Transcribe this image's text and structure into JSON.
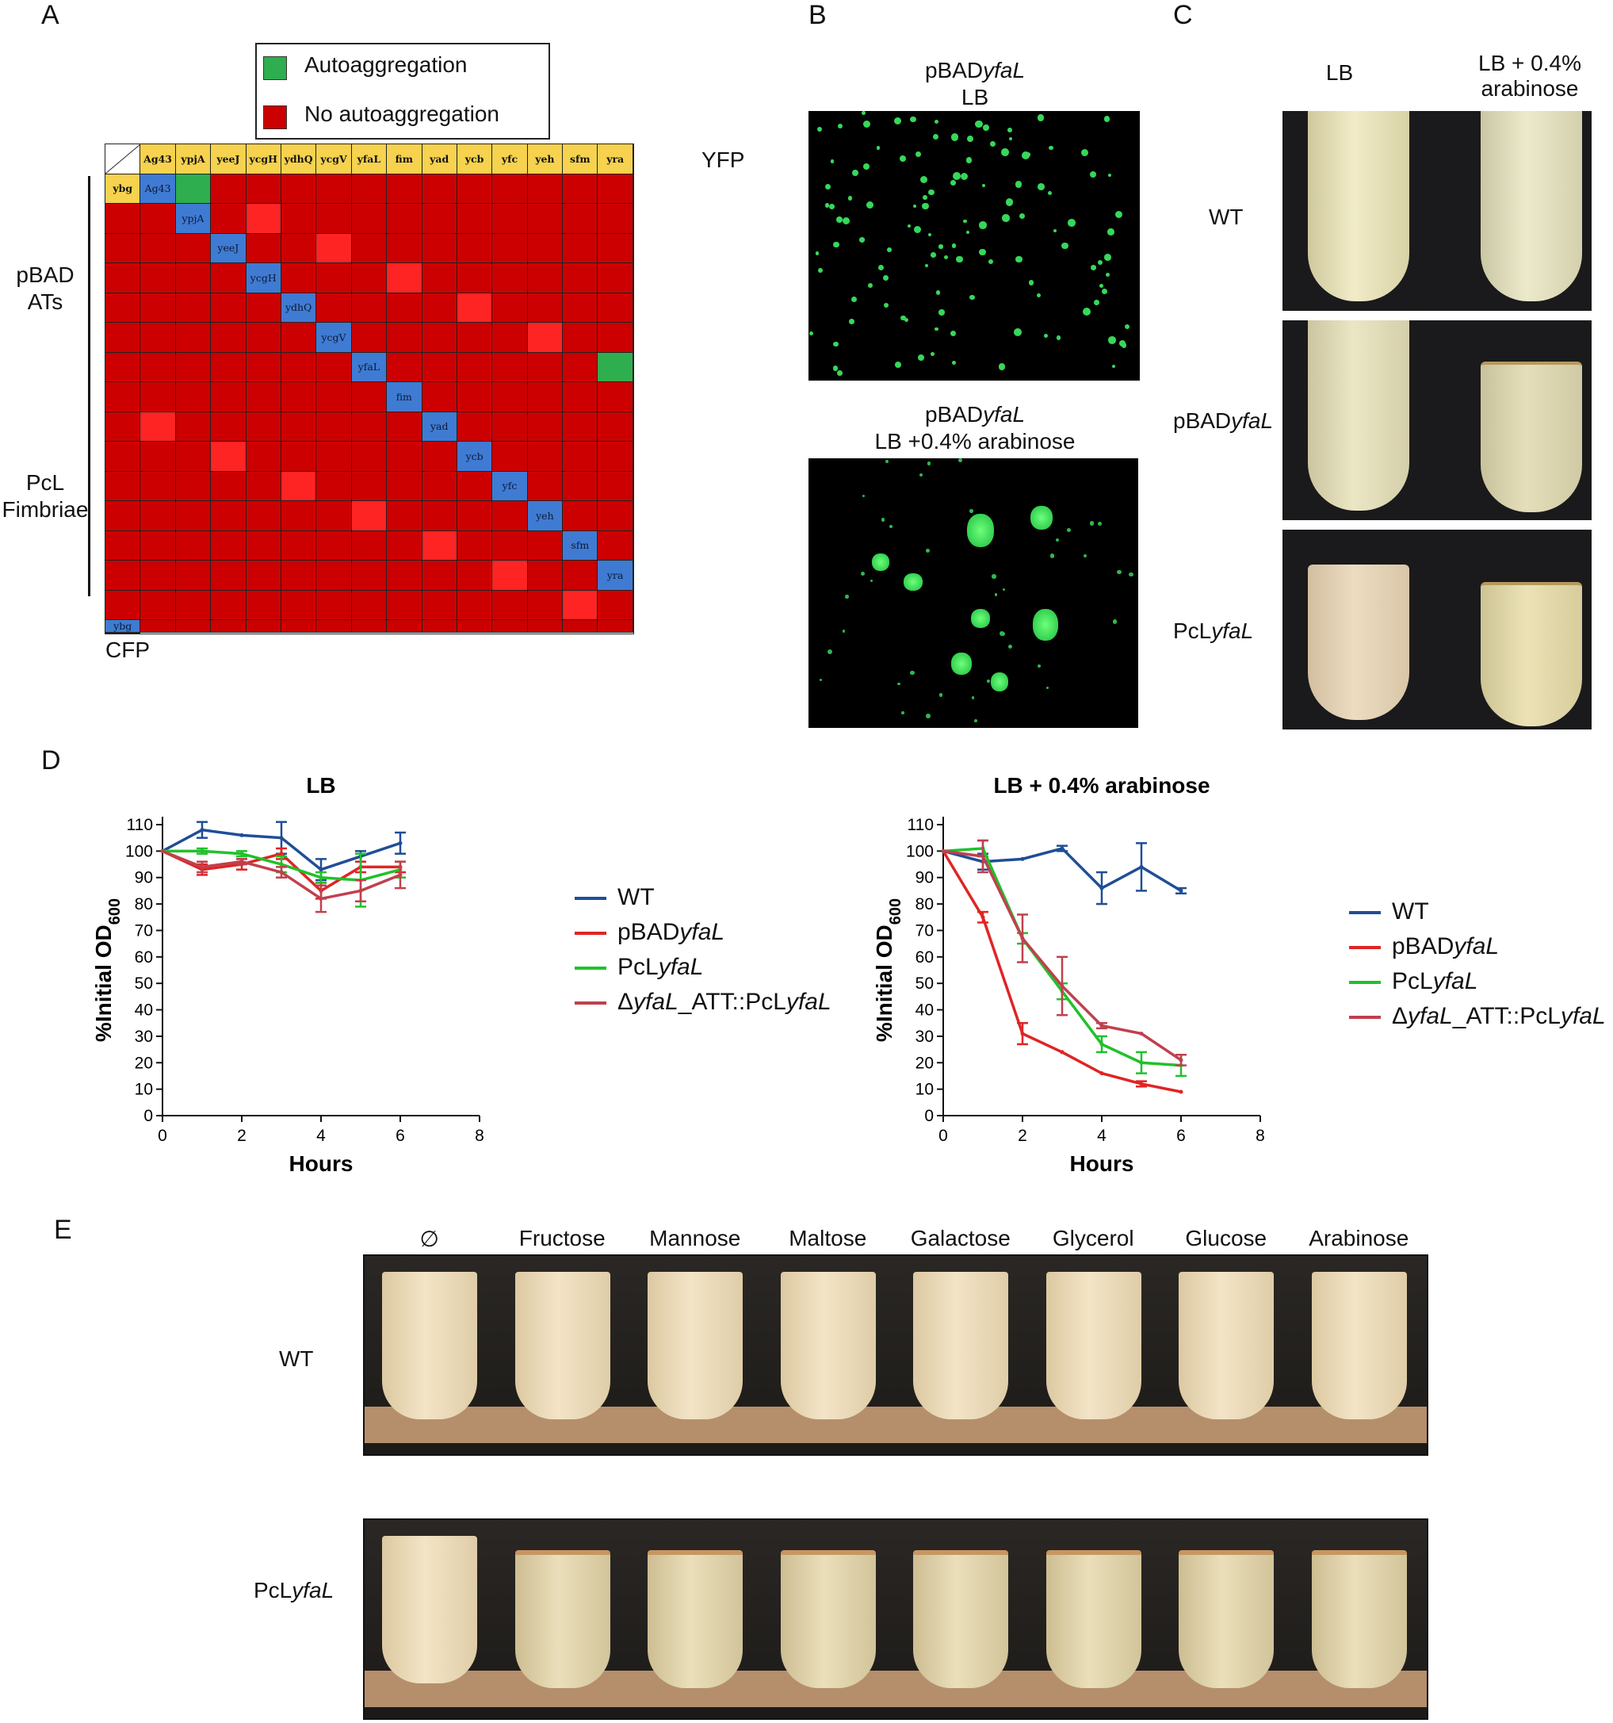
{
  "panels": {
    "A": "A",
    "B": "B",
    "C": "C",
    "D": "D",
    "E": "E"
  },
  "panelA": {
    "legend": {
      "autoaggregation": "Autoaggregation",
      "no_autoaggregation": "No autoaggregation",
      "autoaggregation_color": "#2fae4f",
      "no_autoaggregation_color": "#cc0000"
    },
    "col_axis_label": "YFP",
    "row_axis_label": "CFP",
    "group_pbad": [
      "pBAD",
      "ATs"
    ],
    "group_pcl": [
      "PcL",
      "Fimbriae"
    ],
    "headers": [
      "Ag43",
      "ypjA",
      "yeeJ",
      "ycgH",
      "ydhQ",
      "ycgV",
      "yfaL",
      "fim",
      "yad",
      "ycb",
      "yfc",
      "yeh",
      "sfm",
      "yra",
      "ybg"
    ],
    "autoaggregation_pairs": [
      [
        "Ag43",
        "Ag43"
      ],
      [
        "yfaL",
        "yfaL"
      ]
    ]
  },
  "panelB": {
    "top_title": [
      "pBAD",
      "yfaL",
      "LB"
    ],
    "bottom_title": [
      "pBAD",
      "yfaL",
      "LB +0.4% arabinose"
    ]
  },
  "panelC": {
    "col1": "LB",
    "col2": [
      "LB + 0.4%",
      "arabinose"
    ],
    "rows": [
      {
        "pre": "WT",
        "ital": ""
      },
      {
        "pre": "pBAD",
        "ital": "yfaL"
      },
      {
        "pre": "PcL",
        "ital": "yfaL"
      }
    ]
  },
  "chart_data": [
    {
      "type": "line",
      "title": "LB",
      "xlabel": "Hours",
      "ylabel": "%Initial OD600",
      "xlim": [
        0,
        8
      ],
      "ylim": [
        0,
        110
      ],
      "xticks": [
        0,
        2,
        4,
        6,
        8
      ],
      "yticks": [
        0,
        10,
        20,
        30,
        40,
        50,
        60,
        70,
        80,
        90,
        100,
        110
      ],
      "series": [
        {
          "name": "WT",
          "color": "#1f4e96",
          "x": [
            0,
            1,
            2,
            3,
            4,
            5,
            6
          ],
          "y": [
            100,
            108,
            106,
            105,
            93,
            98,
            103
          ],
          "err": [
            0,
            3,
            0,
            6,
            4,
            2,
            4
          ]
        },
        {
          "name": "pBADyfaL",
          "color": "#e02424",
          "x": [
            0,
            1,
            2,
            3,
            4,
            5,
            6
          ],
          "y": [
            100,
            93,
            95,
            99,
            85,
            94,
            94
          ],
          "err": [
            0,
            2,
            2,
            2,
            3,
            2,
            2
          ]
        },
        {
          "name": "PcLyfaL",
          "color": "#21c12b",
          "x": [
            0,
            1,
            2,
            3,
            4,
            5,
            6
          ],
          "y": [
            100,
            100,
            99,
            95,
            90,
            89,
            93
          ],
          "err": [
            0,
            1,
            1,
            3,
            2,
            10,
            3
          ]
        },
        {
          "name": "ΔyfaL_ATT::PcLyfaL",
          "color": "#c0404e",
          "x": [
            0,
            1,
            2,
            3,
            4,
            5,
            6
          ],
          "y": [
            100,
            94,
            96,
            92,
            82,
            85,
            91
          ],
          "err": [
            0,
            2,
            1,
            2,
            5,
            4,
            5
          ]
        }
      ]
    },
    {
      "type": "line",
      "title": "LB + 0.4% arabinose",
      "xlabel": "Hours",
      "ylabel": "%Initial OD600",
      "xlim": [
        0,
        8
      ],
      "ylim": [
        0,
        110
      ],
      "xticks": [
        0,
        2,
        4,
        6,
        8
      ],
      "yticks": [
        0,
        10,
        20,
        30,
        40,
        50,
        60,
        70,
        80,
        90,
        100,
        110
      ],
      "series": [
        {
          "name": "WT",
          "color": "#1f4e96",
          "x": [
            0,
            1,
            2,
            3,
            4,
            5,
            6
          ],
          "y": [
            100,
            96,
            97,
            101,
            86,
            94,
            85
          ],
          "err": [
            0,
            3,
            0,
            1,
            6,
            9,
            1
          ]
        },
        {
          "name": "pBADyfaL",
          "color": "#e02424",
          "x": [
            0,
            1,
            2,
            3,
            4,
            5,
            6
          ],
          "y": [
            100,
            75,
            31,
            24,
            16,
            12,
            9
          ],
          "err": [
            0,
            2,
            4,
            0,
            0,
            1,
            0
          ]
        },
        {
          "name": "PcLyfaL",
          "color": "#21c12b",
          "x": [
            0,
            1,
            2,
            3,
            4,
            5,
            6
          ],
          "y": [
            100,
            101,
            67,
            47,
            27,
            20,
            19
          ],
          "err": [
            0,
            3,
            2,
            3,
            3,
            4,
            4
          ]
        },
        {
          "name": "ΔyfaL_ATT::PcLyfaL",
          "color": "#c0404e",
          "x": [
            0,
            1,
            2,
            3,
            4,
            5,
            6
          ],
          "y": [
            100,
            98,
            67,
            49,
            34,
            31,
            21
          ],
          "err": [
            0,
            6,
            9,
            11,
            1,
            0,
            2
          ]
        }
      ]
    }
  ],
  "panelD": {
    "legend": [
      {
        "pre": "WT",
        "ital": "",
        "post": ""
      },
      {
        "pre": "pBAD",
        "ital": "yfaL",
        "post": ""
      },
      {
        "pre": "PcL",
        "ital": "yfaL",
        "post": ""
      },
      {
        "pre": "Δ",
        "ital": "yfaL",
        "post": "_ATT::PcL",
        "ital2": "yfaL"
      }
    ]
  },
  "panelE": {
    "columns": [
      "∅",
      "Fructose",
      "Mannose",
      "Maltose",
      "Galactose",
      "Glycerol",
      "Glucose",
      "Arabinose"
    ],
    "rows": [
      {
        "pre": "WT",
        "ital": ""
      },
      {
        "pre": "PcL",
        "ital": "yfaL"
      }
    ]
  }
}
